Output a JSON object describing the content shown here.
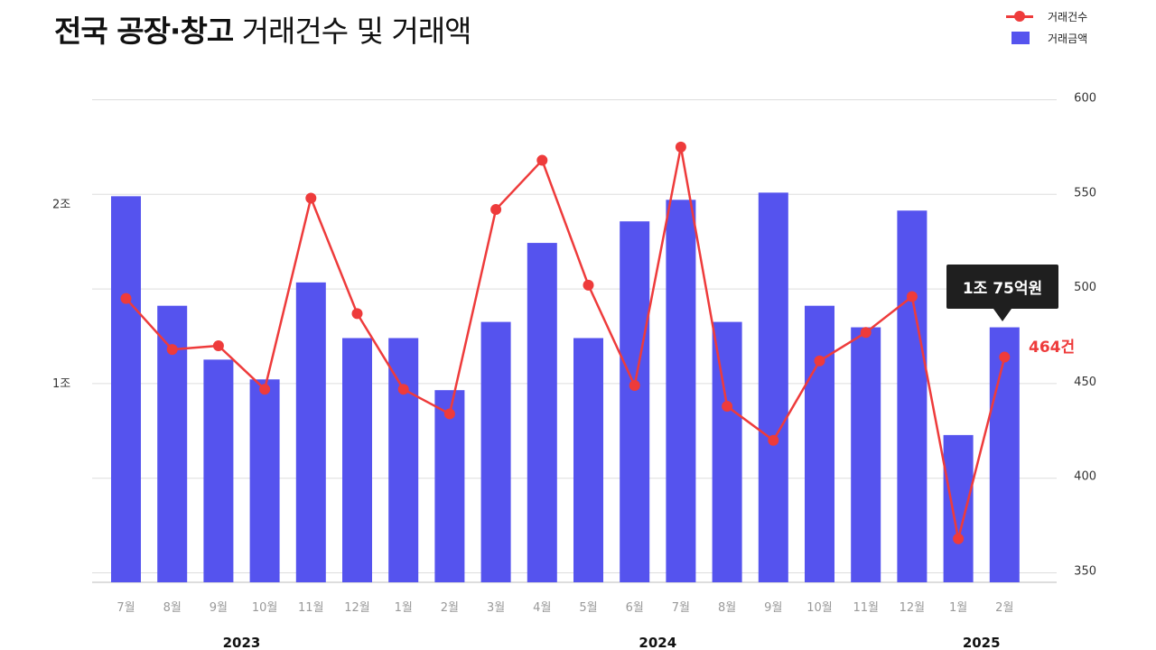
{
  "title": {
    "bold": "전국 공장·창고",
    "light": "거래건수 및 거래액"
  },
  "colors": {
    "bar": "#5553ee",
    "line": "#ee3b3b",
    "grid": "#dddddd"
  },
  "legend": [
    {
      "label": "거래건수",
      "icon": "line-marker"
    },
    {
      "label": "거래금액",
      "icon": "bar-swatch"
    }
  ],
  "tooltip": {
    "label": "1조 75억원"
  },
  "last_point_label": "464건",
  "chart_data": {
    "type": "bar",
    "categories": [
      "7월",
      "8월",
      "9월",
      "10월",
      "11월",
      "12월",
      "1월",
      "2월",
      "3월",
      "4월",
      "5월",
      "6월",
      "7월",
      "8월",
      "9월",
      "10월",
      "11월",
      "12월",
      "1월",
      "2월"
    ],
    "year_labels": [
      {
        "label": "2023",
        "start": 0,
        "end": 5
      },
      {
        "label": "2024",
        "start": 6,
        "end": 17
      },
      {
        "label": "2025",
        "start": 18,
        "end": 19
      }
    ],
    "series": [
      {
        "name": "거래금액",
        "type": "bar",
        "axis": "left",
        "values": [
          2.04,
          1.43,
          1.13,
          1.02,
          1.56,
          1.25,
          1.25,
          0.96,
          1.34,
          1.78,
          1.25,
          1.9,
          2.02,
          1.34,
          2.06,
          1.43,
          1.31,
          1.96,
          0.71,
          1.31
        ]
      },
      {
        "name": "거래건수",
        "type": "line",
        "axis": "right",
        "values": [
          495,
          468,
          470,
          447,
          548,
          487,
          447,
          434,
          542,
          568,
          502,
          449,
          575,
          438,
          420,
          462,
          477,
          496,
          368,
          464
        ]
      }
    ],
    "left_axis": {
      "ticks": [
        {
          "value": 1,
          "label": "1조"
        },
        {
          "value": 2,
          "label": "2조"
        }
      ],
      "range": [
        -0.11,
        2.63
      ]
    },
    "right_axis": {
      "ticks": [
        350,
        400,
        450,
        500,
        550,
        600
      ],
      "range": [
        345,
        605
      ]
    },
    "grid": true,
    "legend_position": "top-right"
  }
}
